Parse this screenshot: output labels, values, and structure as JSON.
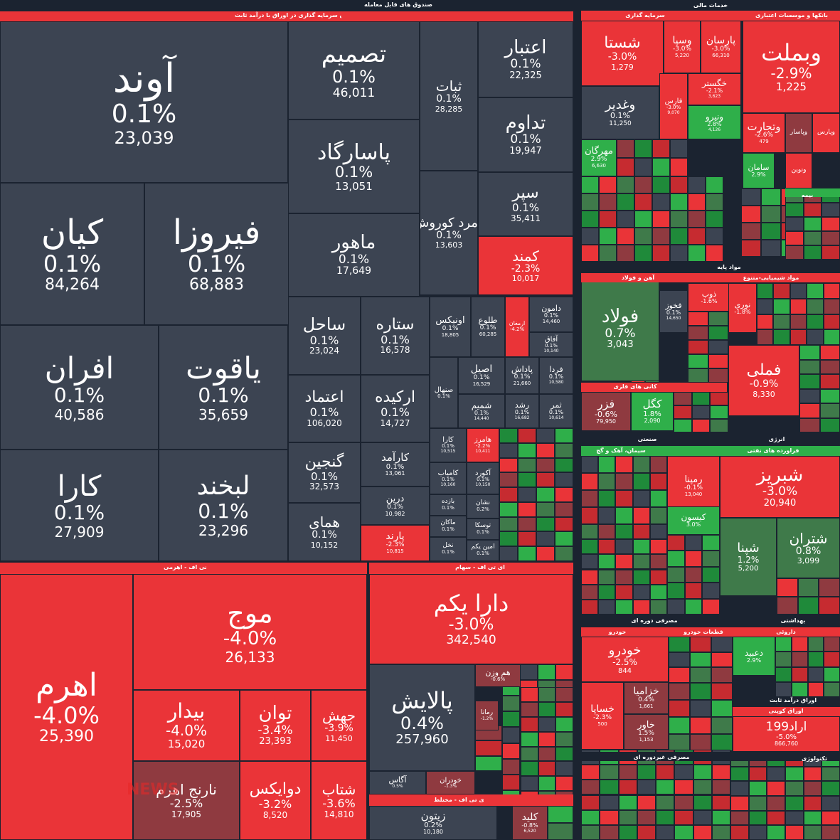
{
  "colors": {
    "neutral": "#3c4452",
    "neg_strong": "#ea3438",
    "neg_mild": "#8f3a40",
    "pos_strong": "#2faf4a",
    "pos_mild": "#3f7a4a",
    "background": "#1b2330"
  },
  "watermark": "NEWS",
  "chart_data": {
    "type": "treemap",
    "value_meaning": "percent change per symbol; secondary number is price",
    "sectors": [
      {
        "label": "صندوق های قابل معامله"
      },
      {
        "label": "صندوق سرمایه گذاری در اوراق با درآمد ثابت"
      },
      {
        "label": "خدمات مالی"
      },
      {
        "label": "سرمایه گذاری"
      },
      {
        "label": "بانکها و موسسات اعتباری"
      },
      {
        "label": "بیمه"
      },
      {
        "label": "مواد پایه"
      },
      {
        "label": "آهن و فولاد"
      },
      {
        "label": "مواد شیمیایی-متنوع"
      },
      {
        "label": "کانی های فلزی"
      },
      {
        "label": "صنعتی"
      },
      {
        "label": "سیمان، آهک و گچ"
      },
      {
        "label": "انرژی"
      },
      {
        "label": "فراورده های نفتی"
      },
      {
        "label": "مصرفی دوره ای"
      },
      {
        "label": "خودرو"
      },
      {
        "label": "قطعات خودرو"
      },
      {
        "label": "بهداشتی"
      },
      {
        "label": "داروئی"
      },
      {
        "label": "اوراق درآمد ثابت"
      },
      {
        "label": "اوراق کوپنی"
      },
      {
        "label": "مصرفی غیردوره ای"
      },
      {
        "label": "تکنولوژی"
      },
      {
        "label": "ای تی اف - اهرمی"
      },
      {
        "label": "ای تی اف - سهام"
      },
      {
        "label": "ای تی اف - مختلط"
      }
    ],
    "tiles": [
      {
        "name": "آوند",
        "change": "0.1%",
        "price": "23,039"
      },
      {
        "name": "تصمیم",
        "change": "0.1%",
        "price": "46,011"
      },
      {
        "name": "ثبات",
        "change": "0.1%",
        "price": "28,285"
      },
      {
        "name": "اعتبار",
        "change": "0.1%",
        "price": "22,325"
      },
      {
        "name": "پاسارگاد",
        "change": "0.1%",
        "price": "13,051"
      },
      {
        "name": "تداوم",
        "change": "0.1%",
        "price": "19,947"
      },
      {
        "name": "زمرد کوروش",
        "change": "0.1%",
        "price": "13,603"
      },
      {
        "name": "سپر",
        "change": "0.1%",
        "price": "35,411"
      },
      {
        "name": "کیان",
        "change": "0.1%",
        "price": "84,264"
      },
      {
        "name": "فیروزا",
        "change": "0.1%",
        "price": "68,883"
      },
      {
        "name": "ماهور",
        "change": "0.1%",
        "price": "17,649"
      },
      {
        "name": "کمند",
        "change": "-2.3%",
        "price": "10,017"
      },
      {
        "name": "ساحل",
        "change": "0.1%",
        "price": "23,024"
      },
      {
        "name": "ستاره",
        "change": "0.1%",
        "price": "16,578"
      },
      {
        "name": "اونیکس",
        "change": "0.1%",
        "price": "18,805"
      },
      {
        "name": "طلوع",
        "change": "0.1%",
        "price": "60,285"
      },
      {
        "name": "ارمغان",
        "change": "-4.2%",
        "price": ""
      },
      {
        "name": "دامون",
        "change": "0.1%",
        "price": "14,460"
      },
      {
        "name": "آفاق",
        "change": "0.1%",
        "price": "10,140"
      },
      {
        "name": "افران",
        "change": "0.1%",
        "price": "40,586"
      },
      {
        "name": "یاقوت",
        "change": "0.1%",
        "price": "35,659"
      },
      {
        "name": "اعتماد",
        "change": "0.1%",
        "price": "106,020"
      },
      {
        "name": "ارکیده",
        "change": "0.1%",
        "price": "14,727"
      },
      {
        "name": "صنهال",
        "change": "0.1%",
        "price": ""
      },
      {
        "name": "اصیل",
        "change": "0.1%",
        "price": "16,529"
      },
      {
        "name": "پاداش",
        "change": "0.1%",
        "price": "21,660"
      },
      {
        "name": "فردا",
        "change": "0.1%",
        "price": "10,580"
      },
      {
        "name": "شمیم",
        "change": "0.1%",
        "price": "14,440"
      },
      {
        "name": "رشد",
        "change": "0.1%",
        "price": "16,682"
      },
      {
        "name": "ثمر",
        "change": "0.1%",
        "price": "10,614"
      },
      {
        "name": "کارا",
        "change": "0.1%",
        "price": "27,909"
      },
      {
        "name": "لبخند",
        "change": "0.1%",
        "price": "23,296"
      },
      {
        "name": "گنجین",
        "change": "0.1%",
        "price": "32,573"
      },
      {
        "name": "کارآمد",
        "change": "0.1%",
        "price": "13,061"
      },
      {
        "name": "درین",
        "change": "0.1%",
        "price": "10,982"
      },
      {
        "name": "همای",
        "change": "0.1%",
        "price": "10,152"
      },
      {
        "name": "پارند",
        "change": "-2.3%",
        "price": "10,815"
      },
      {
        "name": "کارا",
        "change": "0.1%",
        "price": "10,515"
      },
      {
        "name": "هامرز",
        "change": "-2.2%",
        "price": "10,411"
      },
      {
        "name": "کامیاب",
        "change": "0.1%",
        "price": "10,160"
      },
      {
        "name": "آکورد",
        "change": "0.1%",
        "price": "10,150"
      },
      {
        "name": "بازده",
        "change": "0.1%",
        "price": ""
      },
      {
        "name": "نشان",
        "change": "0.2%",
        "price": ""
      },
      {
        "name": "ماکان",
        "change": "0.1%",
        "price": ""
      },
      {
        "name": "توسکا",
        "change": "0.1%",
        "price": ""
      },
      {
        "name": "نخل",
        "change": "0.1%",
        "price": ""
      },
      {
        "name": "امین یکم",
        "change": "0.1%",
        "price": ""
      },
      {
        "name": "شستا",
        "change": "-3.0%",
        "price": "1,279"
      },
      {
        "name": "وسپا",
        "change": "-3.0%",
        "price": "5,220"
      },
      {
        "name": "پارسان",
        "change": "-3.0%",
        "price": "66,310"
      },
      {
        "name": "وبملت",
        "change": "-2.9%",
        "price": "1,225"
      },
      {
        "name": "وغدیر",
        "change": "0.1%",
        "price": "11,250"
      },
      {
        "name": "فارس",
        "change": "-3.0%",
        "price": "9,070"
      },
      {
        "name": "خگستر",
        "change": "-2.1%",
        "price": "3,623"
      },
      {
        "name": "ونیرو",
        "change": "2.8%",
        "price": "4,126"
      },
      {
        "name": "وتجارت",
        "change": "-2.6%",
        "price": "479"
      },
      {
        "name": "وپاسار",
        "change": "",
        "price": ""
      },
      {
        "name": "وپارس",
        "change": "",
        "price": ""
      },
      {
        "name": "مهرگان",
        "change": "2.9%",
        "price": "6,630"
      },
      {
        "name": "ونوین",
        "change": "",
        "price": ""
      },
      {
        "name": "سامان",
        "change": "2.9%",
        "price": ""
      },
      {
        "name": "فولاد",
        "change": "0.7%",
        "price": "3,043"
      },
      {
        "name": "فخوز",
        "change": "0.1%",
        "price": "14,650"
      },
      {
        "name": "ذوب",
        "change": "-1.6%",
        "price": ""
      },
      {
        "name": "نوری",
        "change": "-1.8%",
        "price": ""
      },
      {
        "name": "فملی",
        "change": "-0.9%",
        "price": "8,330"
      },
      {
        "name": "فزر",
        "change": "-0.6%",
        "price": "79,950"
      },
      {
        "name": "کگل",
        "change": "1.8%",
        "price": "2,090"
      },
      {
        "name": "شبریز",
        "change": "-3.0%",
        "price": "20,940"
      },
      {
        "name": "رمپنا",
        "change": "-0.1%",
        "price": "13,040"
      },
      {
        "name": "شپنا",
        "change": "1.2%",
        "price": "5,200"
      },
      {
        "name": "شتران",
        "change": "0.8%",
        "price": "3,099"
      },
      {
        "name": "کیسون",
        "change": "3.0%",
        "price": ""
      },
      {
        "name": "خودرو",
        "change": "-2.5%",
        "price": "844"
      },
      {
        "name": "خساپا",
        "change": "-2.3%",
        "price": "500"
      },
      {
        "name": "خزامیا",
        "change": "0.4%",
        "price": "1,661"
      },
      {
        "name": "خاور",
        "change": "1.5%",
        "price": "1,153"
      },
      {
        "name": "اراد199",
        "change": "-5.0%",
        "price": "866,760"
      },
      {
        "name": "دعبید",
        "change": "2.9%",
        "price": ""
      },
      {
        "name": "اهرم",
        "change": "-4.0%",
        "price": "25,390"
      },
      {
        "name": "موج",
        "change": "-4.0%",
        "price": "26,133"
      },
      {
        "name": "بیدار",
        "change": "-4.0%",
        "price": "15,020"
      },
      {
        "name": "توان",
        "change": "-3.4%",
        "price": "23,393"
      },
      {
        "name": "جهش",
        "change": "-3.9%",
        "price": "11,450"
      },
      {
        "name": "نارنج اهرم",
        "change": "-2.5%",
        "price": "17,905"
      },
      {
        "name": "دوایکس",
        "change": "-3.2%",
        "price": "8,520"
      },
      {
        "name": "شتاب",
        "change": "-3.6%",
        "price": "14,810"
      },
      {
        "name": "دارا یکم",
        "change": "-3.0%",
        "price": "342,540"
      },
      {
        "name": "پالایش",
        "change": "0.4%",
        "price": "257,960"
      },
      {
        "name": "هم وزن",
        "change": "-0.6%",
        "price": ""
      },
      {
        "name": "رماتا",
        "change": "-1.2%",
        "price": ""
      },
      {
        "name": "آگاس",
        "change": "0.5%",
        "price": ""
      },
      {
        "name": "خودران",
        "change": "-1.3%",
        "price": ""
      },
      {
        "name": "زیتون",
        "change": "0.2%",
        "price": "10,180"
      },
      {
        "name": "کلید",
        "change": "-0.8%",
        "price": "6,520"
      }
    ]
  }
}
